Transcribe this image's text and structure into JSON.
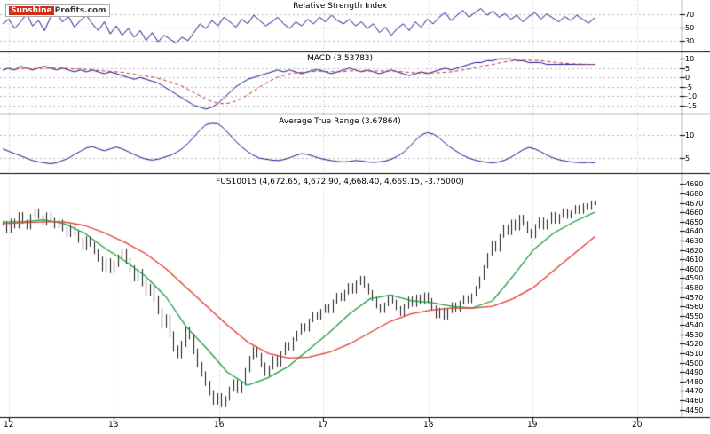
{
  "logo": {
    "brand_red": "Sunshine",
    "brand_rest": "Profits.com"
  },
  "colors": {
    "indicator_line": "#14148c",
    "macd_signal": "#c03030",
    "price_bars": "#1a1a1a",
    "ma_fast": "#1d9e3f",
    "ma_slow": "#e23a2e",
    "grid": "#c9c9c9",
    "separator": "#000000",
    "logo_red": "#d42e12"
  },
  "xaxis": {
    "labels": [
      "12",
      "13",
      "16",
      "17",
      "18",
      "19",
      "20"
    ]
  },
  "chart_data": [
    {
      "type": "line",
      "panel": "rsi",
      "title": "Relative Strength Index",
      "ylim": [
        15,
        88
      ],
      "yticks": [
        70,
        50,
        30
      ],
      "grid": "dotted-horizontal",
      "series": [
        {
          "name": "RSI",
          "color": "#14148c",
          "values": [
            55,
            62,
            48,
            58,
            70,
            52,
            60,
            45,
            65,
            72,
            58,
            66,
            50,
            60,
            68,
            55,
            45,
            58,
            40,
            52,
            38,
            48,
            35,
            45,
            30,
            42,
            28,
            38,
            32,
            26,
            35,
            30,
            42,
            55,
            48,
            60,
            52,
            65,
            58,
            50,
            62,
            55,
            68,
            60,
            52,
            58,
            65,
            55,
            48,
            58,
            52,
            62,
            55,
            65,
            58,
            68,
            60,
            55,
            62,
            52,
            58,
            48,
            55,
            42,
            50,
            38,
            48,
            55,
            45,
            58,
            50,
            62,
            55,
            65,
            72,
            60,
            68,
            75,
            65,
            72,
            78,
            68,
            74,
            65,
            70,
            62,
            68,
            58,
            66,
            72,
            62,
            70,
            64,
            58,
            66,
            60,
            68,
            62,
            56,
            64
          ]
        }
      ]
    },
    {
      "type": "line",
      "panel": "macd",
      "title": "MACD (3.53783)",
      "ylim": [
        -19,
        13
      ],
      "yticks": [
        10,
        5,
        0,
        -5,
        -10,
        -15
      ],
      "grid": "dotted-horizontal",
      "series": [
        {
          "name": "MACD",
          "color": "#14148c",
          "values": [
            4,
            5,
            4,
            6,
            5,
            4,
            5,
            6,
            5,
            4,
            5,
            4,
            3,
            4,
            3,
            4,
            3,
            2,
            3,
            2,
            1,
            0,
            -1,
            0,
            -1,
            -2,
            -3,
            -5,
            -7,
            -9,
            -11,
            -13,
            -15,
            -16,
            -17,
            -16,
            -14,
            -11,
            -8,
            -5,
            -3,
            -1,
            0,
            1,
            2,
            3,
            4,
            3,
            4,
            3,
            2,
            3,
            4,
            4,
            3,
            2,
            3,
            4,
            5,
            4,
            3,
            4,
            3,
            2,
            3,
            4,
            3,
            2,
            1,
            2,
            3,
            2,
            3,
            4,
            5,
            4,
            5,
            6,
            7,
            8,
            8,
            9,
            9,
            10,
            10,
            10,
            9,
            9,
            8,
            8,
            8,
            7,
            7,
            7,
            7,
            7,
            7,
            7,
            7,
            7
          ]
        },
        {
          "name": "Signal",
          "color": "#c03030",
          "style": "dashed",
          "derive": "trailing-mean-8-of-MACD"
        }
      ]
    },
    {
      "type": "line",
      "panel": "atr",
      "title": "Average True Range (3.67864)",
      "ylim": [
        2,
        14
      ],
      "yticks": [
        10,
        5
      ],
      "grid": "dotted-horizontal",
      "series": [
        {
          "name": "ATR",
          "color": "#14148c",
          "values": [
            7,
            6.5,
            6,
            5.5,
            5,
            4.5,
            4.2,
            4,
            3.8,
            4,
            4.5,
            5,
            5.8,
            6.5,
            7.2,
            7.5,
            7,
            6.6,
            7,
            7.4,
            7,
            6.4,
            5.8,
            5.2,
            4.8,
            4.6,
            4.8,
            5.2,
            5.6,
            6.2,
            7,
            8.2,
            9.6,
            11,
            12.2,
            12.5,
            12.4,
            11.4,
            10,
            8.6,
            7.4,
            6.4,
            5.6,
            5,
            4.8,
            4.6,
            4.5,
            4.7,
            5.1,
            5.6,
            6,
            5.8,
            5.4,
            5,
            4.7,
            4.5,
            4.3,
            4.2,
            4.3,
            4.5,
            4.4,
            4.2,
            4.1,
            4.2,
            4.4,
            4.8,
            5.4,
            6.2,
            7.4,
            8.8,
            10,
            10.5,
            10.2,
            9.4,
            8.2,
            7.2,
            6.4,
            5.6,
            5,
            4.6,
            4.3,
            4.1,
            4,
            4.2,
            4.6,
            5.2,
            6,
            6.8,
            7.3,
            7,
            6.4,
            5.7,
            5.1,
            4.7,
            4.4,
            4.2,
            4.1,
            4,
            4.1,
            4
          ]
        }
      ]
    },
    {
      "type": "ohlc",
      "panel": "price",
      "title": "FUS10015 (4,672.65, 4,672.90, 4,668.40, 4,669.15, -3.75000)",
      "legend_values": {
        "open": "4,672.65",
        "high": "4,672.90",
        "low": "4,668.40",
        "close": "4,669.15",
        "change": "-3.75000"
      },
      "ylim": [
        4443,
        4697
      ],
      "yticks": [
        4690,
        4680,
        4670,
        4660,
        4650,
        4640,
        4630,
        4620,
        4610,
        4600,
        4590,
        4580,
        4570,
        4560,
        4550,
        4540,
        4530,
        4520,
        4510,
        4500,
        4490,
        4480,
        4470,
        4460,
        4450
      ],
      "xticks": [
        "12",
        "13",
        "16",
        "17",
        "18",
        "19",
        "20"
      ],
      "series": [
        {
          "name": "Price",
          "color": "#1a1a1a",
          "values": [
            4648,
            4640,
            4651,
            4645,
            4658,
            4650,
            4644,
            4656,
            4662,
            4655,
            4648,
            4658,
            4652,
            4645,
            4650,
            4642,
            4636,
            4645,
            4638,
            4630,
            4622,
            4632,
            4626,
            4618,
            4610,
            4600,
            4608,
            4598,
            4605,
            4612,
            4618,
            4608,
            4600,
            4590,
            4596,
            4585,
            4575,
            4580,
            4568,
            4555,
            4540,
            4548,
            4530,
            4515,
            4508,
            4520,
            4535,
            4528,
            4512,
            4498,
            4488,
            4478,
            4468,
            4458,
            4465,
            4455,
            4462,
            4472,
            4480,
            4470,
            4478,
            4492,
            4505,
            4515,
            4508,
            4498,
            4488,
            4495,
            4505,
            4498,
            4510,
            4520,
            4515,
            4525,
            4532,
            4540,
            4535,
            4545,
            4552,
            4548,
            4555,
            4560,
            4555,
            4565,
            4572,
            4568,
            4575,
            4582,
            4576,
            4585,
            4590,
            4582,
            4575,
            4568,
            4560,
            4555,
            4562,
            4570,
            4565,
            4558,
            4552,
            4560,
            4568,
            4562,
            4570,
            4565,
            4572,
            4566,
            4558,
            4550,
            4556,
            4548,
            4555,
            4562,
            4556,
            4564,
            4570,
            4565,
            4572,
            4580,
            4590,
            4602,
            4615,
            4628,
            4620,
            4635,
            4645,
            4638,
            4650,
            4643,
            4655,
            4648,
            4640,
            4635,
            4645,
            4652,
            4644,
            4650,
            4658,
            4650,
            4656,
            4662,
            4655,
            4660,
            4666,
            4660,
            4668,
            4664,
            4671,
            4669
          ],
          "bar_range": [
            8,
            8,
            7,
            8,
            9,
            10,
            12,
            14,
            12,
            12,
            10,
            9,
            8,
            8,
            7,
            7,
            8,
            9,
            8,
            7,
            9,
            10,
            8,
            6,
            6,
            8,
            9,
            8,
            6,
            5
          ]
        },
        {
          "name": "MA fast",
          "color": "#1d9e3f",
          "values": [
            4650,
            4650,
            4652,
            4648,
            4638,
            4622,
            4608,
            4592,
            4570,
            4538,
            4515,
            4490,
            4476,
            4484,
            4496,
            4514,
            4532,
            4552,
            4568,
            4572,
            4566,
            4564,
            4560,
            4558,
            4566,
            4592,
            4620,
            4638,
            4650,
            4660
          ]
        },
        {
          "name": "MA slow",
          "color": "#e23a2e",
          "values": [
            4648,
            4649,
            4650,
            4650,
            4646,
            4638,
            4628,
            4616,
            4600,
            4580,
            4560,
            4540,
            4522,
            4510,
            4505,
            4506,
            4511,
            4520,
            4532,
            4544,
            4552,
            4556,
            4558,
            4558,
            4560,
            4568,
            4580,
            4598,
            4616,
            4634
          ]
        }
      ]
    }
  ]
}
